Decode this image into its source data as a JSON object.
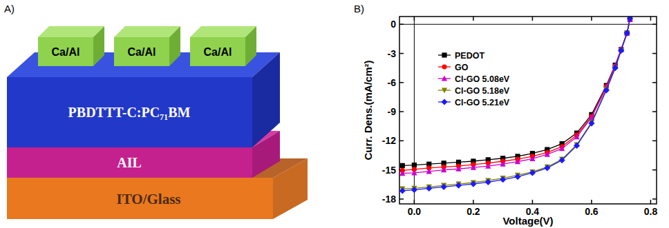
{
  "panel_labels": [
    "A)",
    "B)"
  ],
  "diagram": {
    "electrodes": [
      "Ca/Al",
      "Ca/Al",
      "Ca/Al"
    ],
    "layers": [
      "PBDTTT-C:PC₇₁BM",
      "AIL",
      "ITO/Glass"
    ]
  },
  "chart_data": {
    "type": "line",
    "x_label": "Voltage(V)",
    "y_label": "Curr. Dens.(mA/cm²)",
    "x": [
      -0.04,
      0,
      0.05,
      0.1,
      0.15,
      0.2,
      0.25,
      0.3,
      0.35,
      0.4,
      0.45,
      0.5,
      0.55,
      0.6,
      0.65,
      0.68,
      0.7,
      0.72,
      0.73
    ],
    "series": [
      {
        "name": "PEDOT",
        "color": "#000000",
        "marker": "square",
        "values": [
          -14.55,
          -14.5,
          -14.4,
          -14.3,
          -14.2,
          -14.1,
          -13.95,
          -13.8,
          -13.6,
          -13.3,
          -12.9,
          -12.3,
          -11.2,
          -9.3,
          -6.3,
          -4.2,
          -2.6,
          -0.9,
          0.5
        ]
      },
      {
        "name": "GO",
        "color": "#ff0000",
        "marker": "circle",
        "values": [
          -15.05,
          -14.95,
          -14.8,
          -14.7,
          -14.6,
          -14.45,
          -14.3,
          -14.1,
          -13.9,
          -13.6,
          -13.2,
          -12.6,
          -11.4,
          -9.5,
          -6.4,
          -4.3,
          -2.6,
          -0.9,
          0.5
        ]
      },
      {
        "name": "Cl-GO 5.08eV",
        "color": "#cc00cc",
        "marker": "triangle",
        "values": [
          -15.35,
          -15.3,
          -15.15,
          -15.0,
          -14.9,
          -14.75,
          -14.6,
          -14.4,
          -14.15,
          -13.85,
          -13.4,
          -12.8,
          -11.6,
          -9.6,
          -6.5,
          -4.3,
          -2.6,
          -0.9,
          0.5
        ]
      },
      {
        "name": "Cl-GO 5.18eV",
        "color": "#808000",
        "marker": "triangle-down",
        "values": [
          -16.95,
          -16.9,
          -16.75,
          -16.6,
          -16.45,
          -16.3,
          -16.1,
          -15.85,
          -15.55,
          -15.2,
          -14.7,
          -13.9,
          -12.4,
          -10.1,
          -6.7,
          -4.5,
          -2.7,
          -0.9,
          0.6
        ]
      },
      {
        "name": "Cl-GO 5.21eV",
        "color": "#1a1aff",
        "marker": "diamond",
        "values": [
          -17.15,
          -17.05,
          -16.9,
          -16.75,
          -16.6,
          -16.45,
          -16.25,
          -16.0,
          -15.7,
          -15.3,
          -14.8,
          -14.0,
          -12.5,
          -10.2,
          -6.8,
          -4.5,
          -2.7,
          -0.9,
          0.6
        ]
      }
    ],
    "xlim": [
      -0.05,
      0.82
    ],
    "ylim": [
      -18.5,
      0.8
    ],
    "xticks": [
      {
        "value": 0,
        "label": "0.0"
      },
      {
        "value": 0.2,
        "label": "0.2"
      },
      {
        "value": 0.4,
        "label": "0.4"
      },
      {
        "value": 0.6,
        "label": "0.6"
      },
      {
        "value": 0.8,
        "label": "0.8"
      }
    ],
    "yticks": [
      0,
      -3,
      -6,
      -9,
      -12,
      -15,
      -18
    ],
    "grid": false,
    "legend": "upper left"
  }
}
